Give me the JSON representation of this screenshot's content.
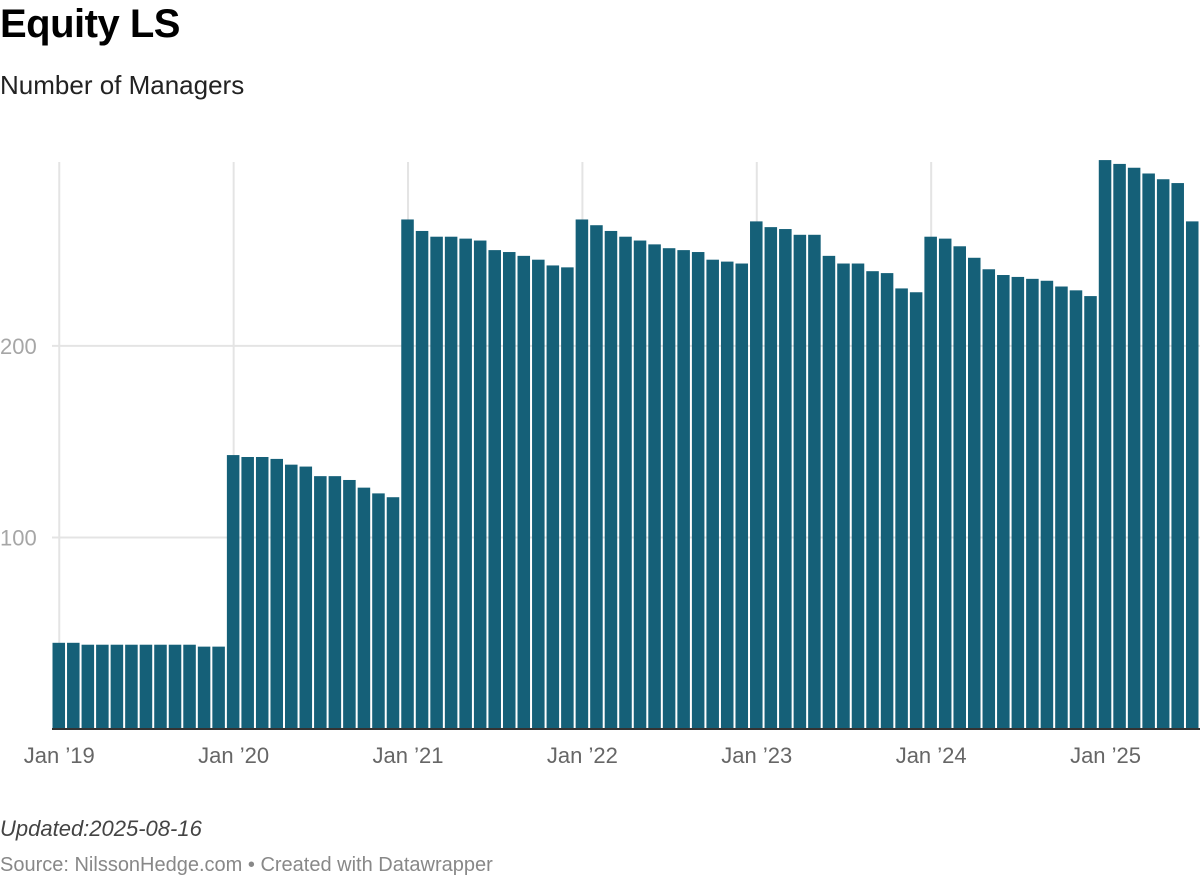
{
  "header": {
    "title": "Equity LS",
    "subtitle": "Number of Managers"
  },
  "footer": {
    "updated": "Updated:2025-08-16",
    "source": "Source: NilssonHedge.com • Created with Datawrapper"
  },
  "colors": {
    "bar": "#156078",
    "grid": "#e4e4e4",
    "baseline": "#333333"
  },
  "chart_data": {
    "type": "bar",
    "title": "Equity LS",
    "subtitle": "Number of Managers",
    "x_start": "2019-01",
    "x_end": "2025-07",
    "interval": "monthly",
    "ylim": [
      0,
      296
    ],
    "yticks": [
      100,
      200
    ],
    "grid": true,
    "x_tick_labels": [
      {
        "label": "Jan ’19",
        "date": "2019-01"
      },
      {
        "label": "Jan ’20",
        "date": "2020-01"
      },
      {
        "label": "Jan ’21",
        "date": "2021-01"
      },
      {
        "label": "Jan ’22",
        "date": "2022-01"
      },
      {
        "label": "Jan ’23",
        "date": "2023-01"
      },
      {
        "label": "Jan ’24",
        "date": "2024-01"
      },
      {
        "label": "Jan ’25",
        "date": "2025-01"
      }
    ],
    "values": [
      45,
      45,
      44,
      44,
      44,
      44,
      44,
      44,
      44,
      44,
      43,
      43,
      143,
      142,
      142,
      141,
      138,
      137,
      132,
      132,
      130,
      126,
      123,
      121,
      266,
      260,
      257,
      257,
      256,
      255,
      250,
      249,
      247,
      245,
      242,
      241,
      266,
      263,
      260,
      257,
      255,
      253,
      251,
      250,
      249,
      245,
      244,
      243,
      265,
      262,
      261,
      258,
      258,
      247,
      243,
      243,
      239,
      238,
      230,
      228,
      257,
      256,
      252,
      246,
      240,
      237,
      236,
      235,
      234,
      231,
      229,
      226,
      297,
      295,
      293,
      290,
      287,
      285,
      265
    ]
  }
}
